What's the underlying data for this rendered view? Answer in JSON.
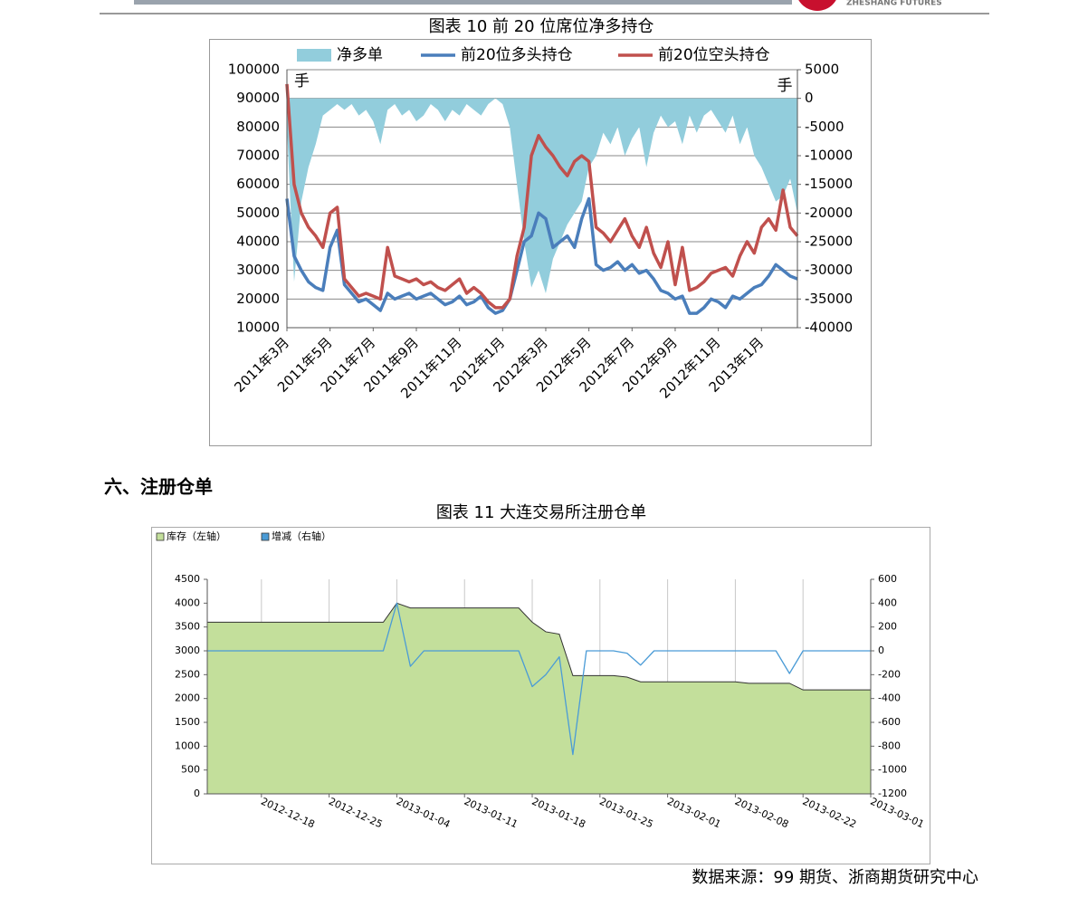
{
  "header": {
    "brand": "ZHESHANG FUTURES"
  },
  "section_heading": "六、注册仓单",
  "source": "数据来源：99 期货、浙商期货研究中心",
  "chart_data": [
    {
      "type": "line",
      "title": "图表 10  前 20 位席位净多持仓",
      "ylabel": "手",
      "y2label": "手",
      "categories": [
        "2011年3月",
        null,
        null,
        null,
        null,
        null,
        "2011年5月",
        null,
        null,
        null,
        null,
        null,
        "2011年7月",
        null,
        null,
        null,
        null,
        null,
        "2011年9月",
        null,
        null,
        null,
        null,
        null,
        "2011年11月",
        null,
        null,
        null,
        null,
        null,
        "2012年1月",
        null,
        null,
        null,
        null,
        null,
        "2012年3月",
        null,
        null,
        null,
        null,
        null,
        "2012年5月",
        null,
        null,
        null,
        null,
        null,
        "2012年7月",
        null,
        null,
        null,
        null,
        null,
        "2012年9月",
        null,
        null,
        null,
        null,
        null,
        "2012年11月",
        null,
        null,
        null,
        null,
        null,
        "2013年1月",
        null,
        null,
        null,
        null,
        null
      ],
      "series": [
        {
          "name": "净多单",
          "color": "#92cddc",
          "style": "area",
          "axis": "y2",
          "values": [
            -5000,
            -32000,
            -18000,
            -12000,
            -8000,
            -3000,
            -2000,
            -1000,
            -2000,
            -1000,
            -3000,
            -2000,
            -4000,
            -8000,
            -2000,
            -1000,
            -3000,
            -2000,
            -4000,
            -3000,
            -1000,
            -2000,
            -4000,
            -2000,
            -3000,
            -1000,
            -2000,
            -3000,
            -1000,
            0,
            -1000,
            -5000,
            -15000,
            -25000,
            -33000,
            -30000,
            -34000,
            -28000,
            -25000,
            -22000,
            -20000,
            -18000,
            -12000,
            -10000,
            -6000,
            -8000,
            -5000,
            -10000,
            -7000,
            -5000,
            -12000,
            -6000,
            -3000,
            -5000,
            -4000,
            -8000,
            -3000,
            -6000,
            -3000,
            -2000,
            -4000,
            -6000,
            -3000,
            -8000,
            -5000,
            -10000,
            -12000,
            -15000,
            -18000,
            -17000,
            -14000,
            -20000
          ]
        },
        {
          "name": "前20位多头持仓",
          "color": "#4a7ebb",
          "style": "line",
          "values": [
            55000,
            35000,
            30000,
            26000,
            24000,
            23000,
            38000,
            44000,
            25000,
            22000,
            19000,
            20000,
            18000,
            16000,
            22000,
            20000,
            21000,
            22000,
            20000,
            21000,
            22000,
            20000,
            18000,
            19000,
            21000,
            18000,
            19000,
            21000,
            17000,
            15000,
            16000,
            20000,
            30000,
            40000,
            42000,
            50000,
            48000,
            38000,
            40000,
            42000,
            38000,
            48000,
            55000,
            32000,
            30000,
            31000,
            33000,
            30000,
            32000,
            29000,
            30000,
            27000,
            23000,
            22000,
            20000,
            21000,
            15000,
            15000,
            17000,
            20000,
            19000,
            17000,
            21000,
            20000,
            22000,
            24000,
            25000,
            28000,
            32000,
            30000,
            28000,
            27000
          ]
        },
        {
          "name": "前20位空头持仓",
          "color": "#c0504d",
          "style": "line",
          "values": [
            95000,
            60000,
            50000,
            45000,
            42000,
            38000,
            50000,
            52000,
            27000,
            24000,
            21000,
            22000,
            21000,
            20000,
            38000,
            28000,
            27000,
            26000,
            27000,
            25000,
            26000,
            24000,
            23000,
            25000,
            27000,
            22000,
            24000,
            22000,
            19000,
            17000,
            17000,
            20000,
            35000,
            45000,
            70000,
            77000,
            73000,
            70000,
            66000,
            63000,
            68000,
            70000,
            68000,
            45000,
            43000,
            40000,
            44000,
            48000,
            42000,
            38000,
            45000,
            36000,
            31000,
            40000,
            25000,
            38000,
            23000,
            24000,
            26000,
            29000,
            30000,
            31000,
            28000,
            35000,
            40000,
            36000,
            45000,
            48000,
            44000,
            58000,
            45000,
            42000
          ]
        }
      ],
      "ylim": [
        10000,
        100000
      ],
      "yticks": [
        10000,
        20000,
        30000,
        40000,
        50000,
        60000,
        70000,
        80000,
        90000,
        100000
      ],
      "y2lim": [
        -40000,
        5000
      ],
      "y2ticks": [
        -40000,
        -35000,
        -30000,
        -25000,
        -20000,
        -15000,
        -10000,
        -5000,
        0,
        5000
      ],
      "grid": true
    },
    {
      "type": "line",
      "title": "图表 11  大连交易所注册仓单",
      "categories": [
        null,
        null,
        null,
        null,
        "2012-12-18",
        null,
        null,
        null,
        null,
        "2012-12-25",
        null,
        null,
        null,
        null,
        "2013-01-04",
        null,
        null,
        null,
        null,
        "2013-01-11",
        null,
        null,
        null,
        null,
        "2013-01-18",
        null,
        null,
        null,
        null,
        "2013-01-25",
        null,
        null,
        null,
        null,
        "2013-02-01",
        null,
        null,
        null,
        null,
        "2013-02-08",
        null,
        null,
        null,
        null,
        "2013-02-22",
        null,
        null,
        null,
        null,
        "2013-03-01"
      ],
      "series": [
        {
          "name": "库存（左轴）",
          "color": "#c3df9b",
          "style": "area",
          "values": [
            3600,
            3600,
            3600,
            3600,
            3600,
            3600,
            3600,
            3600,
            3600,
            3600,
            3600,
            3600,
            3600,
            3600,
            4000,
            3900,
            3900,
            3900,
            3900,
            3900,
            3900,
            3900,
            3900,
            3900,
            3600,
            3400,
            3350,
            2480,
            2480,
            2480,
            2480,
            2450,
            2350,
            2350,
            2350,
            2350,
            2350,
            2350,
            2350,
            2350,
            2320,
            2320,
            2320,
            2320,
            2180,
            2180,
            2180,
            2180,
            2180,
            2180
          ]
        },
        {
          "name": "增减（右轴）",
          "color": "#4a9bd6",
          "style": "line",
          "axis": "y2",
          "values": [
            0,
            0,
            0,
            0,
            0,
            0,
            0,
            0,
            0,
            0,
            0,
            0,
            0,
            0,
            400,
            -130,
            0,
            0,
            0,
            0,
            0,
            0,
            0,
            0,
            -300,
            -200,
            -50,
            -870,
            0,
            0,
            0,
            -20,
            -120,
            0,
            0,
            0,
            0,
            0,
            0,
            0,
            0,
            0,
            0,
            -190,
            0,
            0,
            0,
            0,
            0,
            0
          ]
        }
      ],
      "ylim": [
        0,
        4500
      ],
      "yticks": [
        0,
        500,
        1000,
        1500,
        2000,
        2500,
        3000,
        3500,
        4000,
        4500
      ],
      "y2lim": [
        -1200,
        600
      ],
      "y2ticks": [
        -1200,
        -1000,
        -800,
        -600,
        -400,
        -200,
        0,
        200,
        400,
        600
      ],
      "xgrid": true
    }
  ]
}
